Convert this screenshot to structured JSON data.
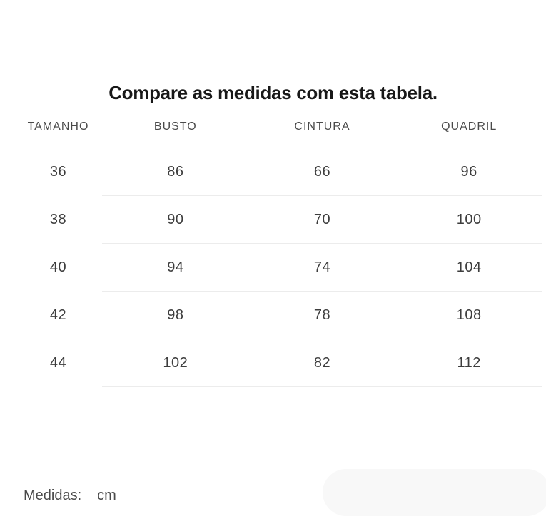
{
  "title": "Compare as medidas com esta tabela.",
  "table": {
    "columns": [
      "TAMANHO",
      "BUSTO",
      "CINTURA",
      "QUADRIL"
    ],
    "rows": [
      [
        "36",
        "86",
        "66",
        "96"
      ],
      [
        "38",
        "90",
        "70",
        "100"
      ],
      [
        "40",
        "94",
        "74",
        "104"
      ],
      [
        "42",
        "98",
        "78",
        "108"
      ],
      [
        "44",
        "102",
        "82",
        "112"
      ]
    ]
  },
  "footer": {
    "label": "Medidas:",
    "unit": "cm"
  },
  "colors": {
    "background": "#ffffff",
    "title_text": "#181818",
    "header_text": "#4a4a4a",
    "cell_text": "#3d3d3d",
    "divider": "#ececec",
    "corner_pill": "#f8f8f8"
  }
}
